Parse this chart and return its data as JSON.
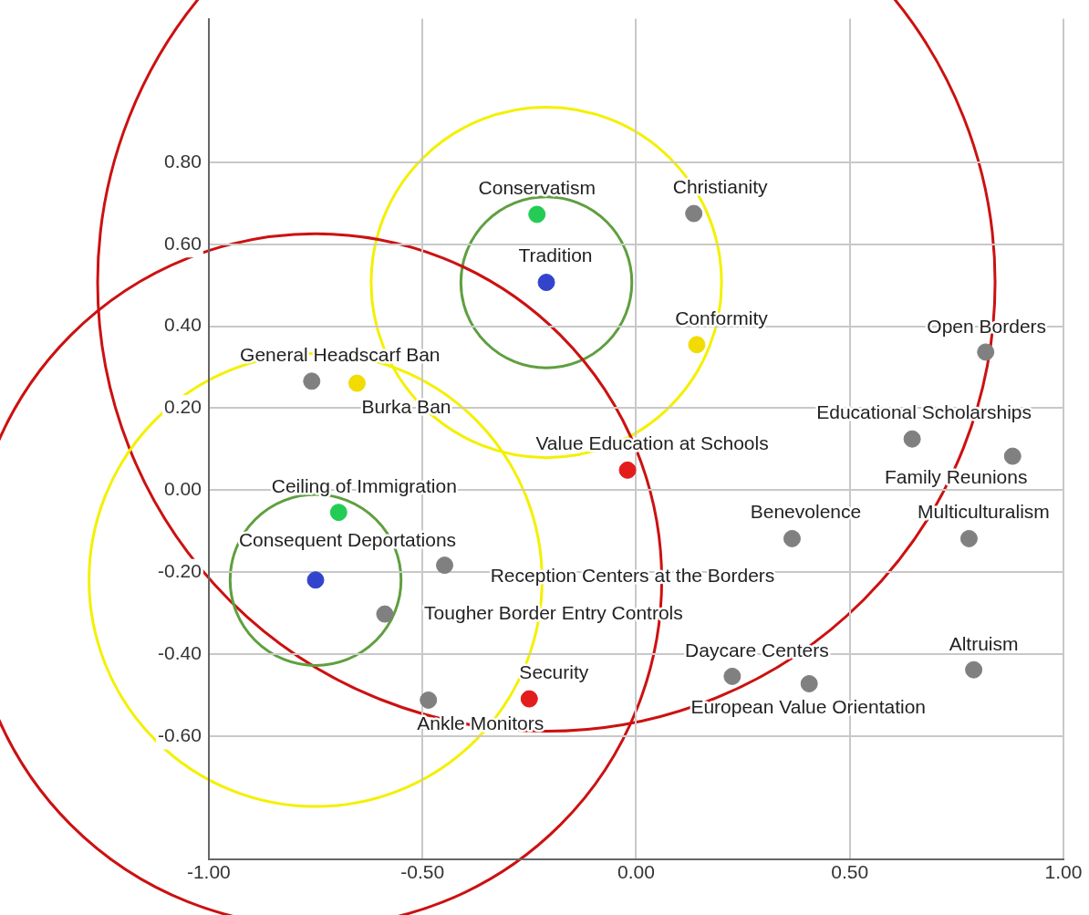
{
  "chart_data": {
    "type": "scatter",
    "marker": "circle",
    "grid": true,
    "legend": false,
    "xlim": [
      -1,
      1
    ],
    "ylim": [
      -0.9,
      1.15
    ],
    "xticks": [
      {
        "value": -1,
        "label": "-1.00"
      },
      {
        "value": -0.5,
        "label": "-0.50"
      },
      {
        "value": 0,
        "label": "0.00"
      },
      {
        "value": 0.5,
        "label": "0.50"
      },
      {
        "value": 1,
        "label": "1.00"
      }
    ],
    "yticks": [
      {
        "value": -0.6,
        "label": "-0.60"
      },
      {
        "value": -0.4,
        "label": "-0.40"
      },
      {
        "value": -0.2,
        "label": "-0.20"
      },
      {
        "value": 0,
        "label": "0.00"
      },
      {
        "value": 0.2,
        "label": "0.20"
      },
      {
        "value": 0.4,
        "label": "0.40"
      },
      {
        "value": 0.6,
        "label": "0.60"
      },
      {
        "value": 0.8,
        "label": "0.80"
      }
    ],
    "series": [
      {
        "color": "#808080",
        "x": [
          0.135,
          0.818,
          -0.759,
          0.646,
          0.881,
          0.365,
          0.779,
          -0.448,
          -0.588,
          0.225,
          0.405,
          0.79,
          -0.486
        ],
        "values": [
          0.675,
          0.337,
          0.266,
          0.125,
          0.083,
          -0.118,
          -0.118,
          -0.183,
          -0.302,
          -0.454,
          -0.472,
          -0.438,
          -0.512
        ]
      },
      {
        "color": "#22cc55",
        "x": [
          -0.232,
          -0.696
        ],
        "values": [
          0.673,
          -0.054
        ]
      },
      {
        "color": "#3344cc",
        "x": [
          -0.21,
          -0.75
        ],
        "values": [
          0.507,
          -0.219
        ]
      },
      {
        "color": "#f2dc00",
        "x": [
          0.142,
          -0.653
        ],
        "values": [
          0.355,
          0.261
        ]
      },
      {
        "color": "#e31c1c",
        "x": [
          -0.02,
          -0.25
        ],
        "values": [
          0.049,
          -0.509
        ]
      }
    ],
    "annotations": [
      {
        "text": "Conservatism",
        "x": -0.232,
        "y": 0.673
      },
      {
        "text": "Christianity",
        "x": 0.135,
        "y": 0.675
      },
      {
        "text": "Tradition",
        "x": -0.21,
        "y": 0.507
      },
      {
        "text": "Conformity",
        "x": 0.142,
        "y": 0.355
      },
      {
        "text": "Open Borders",
        "x": 0.818,
        "y": 0.337
      },
      {
        "text": "General Headscarf Ban",
        "x": -0.759,
        "y": 0.266
      },
      {
        "text": "Burka Ban",
        "x": -0.653,
        "y": 0.261
      },
      {
        "text": "Educational Scholarships",
        "x": 0.646,
        "y": 0.125
      },
      {
        "text": "Family Reunions",
        "x": 0.881,
        "y": 0.083
      },
      {
        "text": "Value Education at Schools",
        "x": -0.02,
        "y": 0.049
      },
      {
        "text": "Ceiling of Immigration",
        "x": -0.696,
        "y": -0.054
      },
      {
        "text": "Benevolence",
        "x": 0.365,
        "y": -0.118
      },
      {
        "text": "Multiculturalism",
        "x": 0.779,
        "y": -0.118
      },
      {
        "text": "Consequent Deportations",
        "x": -0.75,
        "y": -0.219
      },
      {
        "text": "Reception Centers at the Borders",
        "x": -0.448,
        "y": -0.183
      },
      {
        "text": "Tougher Border Entry Controls",
        "x": -0.588,
        "y": -0.302
      },
      {
        "text": "Daycare Centers",
        "x": 0.225,
        "y": -0.454
      },
      {
        "text": "European Value Orientation",
        "x": 0.405,
        "y": -0.472
      },
      {
        "text": "Altruism",
        "x": 0.79,
        "y": -0.438
      },
      {
        "text": "Security",
        "x": -0.25,
        "y": -0.509
      },
      {
        "text": "Ankle Monitors",
        "x": -0.486,
        "y": -0.512
      }
    ]
  }
}
